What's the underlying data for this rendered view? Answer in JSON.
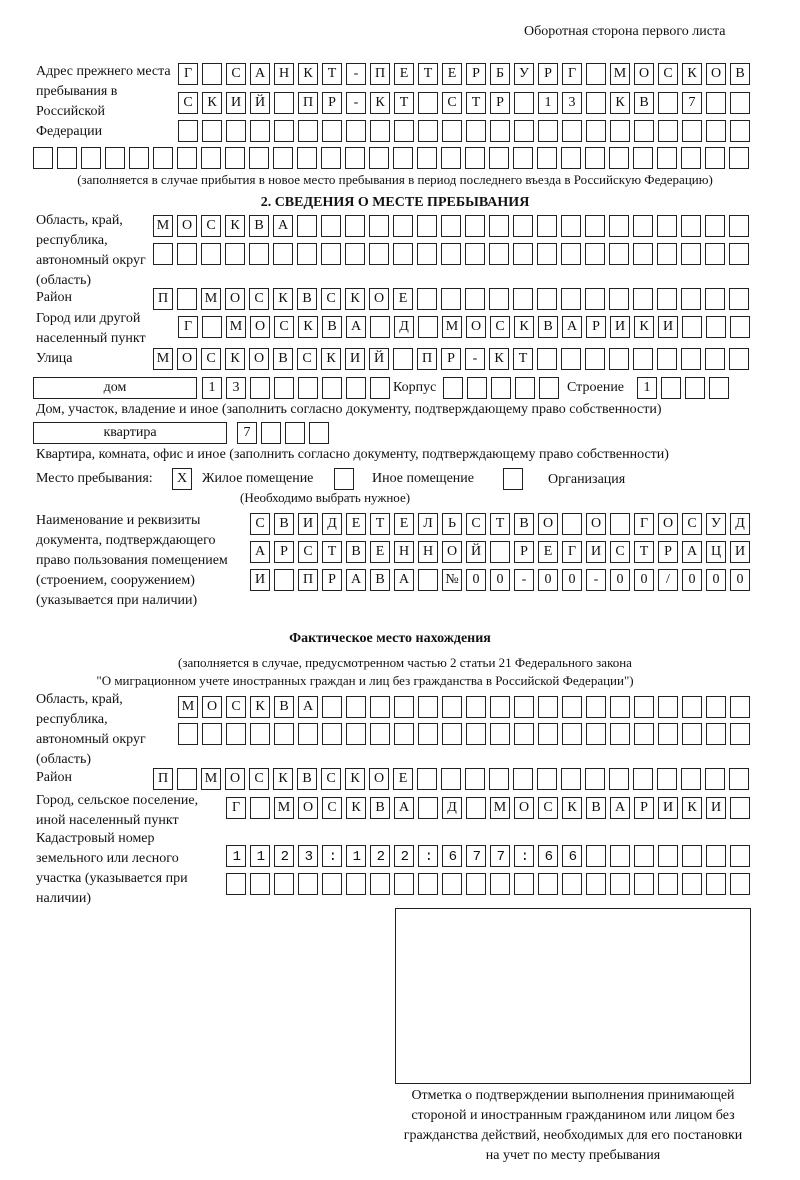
{
  "header": {
    "page_side": "Оборотная сторона первого листа"
  },
  "previous_address": {
    "label": "Адрес прежнего места пребывания в Российской Федерации",
    "rows": [
      "Г САНКТ-ПЕТЕРБУРГ МОСКОВ",
      "СКИЙ ПР-КТ СТР 13 КВ 7  ",
      "                        ",
      "                              "
    ],
    "note": "(заполняется в случае прибытия в новое место пребывания в период последнего въезда в Российскую Федерацию)"
  },
  "section2": {
    "title": "2. СВЕДЕНИЯ О МЕСТЕ ПРЕБЫВАНИЯ",
    "region": {
      "label": "Область, край, республика, автономный округ (область)",
      "rows": [
        "МОСКВА                   ",
        "                         "
      ]
    },
    "district": {
      "label": "Район",
      "rows": [
        "П МОСКВСКОЕ              "
      ]
    },
    "city": {
      "label": "Город или другой населенный пункт",
      "rows": [
        "Г МОСКВА Д МОСКВАРИКИ   "
      ]
    },
    "street": {
      "label": "Улица",
      "rows": [
        "МОСКОВСКИЙ ПР-КТ         "
      ]
    },
    "house": {
      "type_value": "дом",
      "number_cells": "13      ",
      "korpus_label": "Корпус",
      "korpus_cells": "     ",
      "building_label": "Строение",
      "building_cells": "1   ",
      "note": "Дом, участок, владение и иное (заполнить согласно документу, подтверждающему право собственности)"
    },
    "apartment": {
      "type_value": "квартира",
      "number_cells": "7   ",
      "note": "Квартира, комната, офис и иное (заполнить согласно документу, подтверждающему право собственности)"
    },
    "stay_place": {
      "label": "Место пребывания:",
      "options": [
        {
          "label": "Жилое помещение",
          "mark": "X",
          "checked": true
        },
        {
          "label": "Иное помещение",
          "mark": "",
          "checked": false
        },
        {
          "label": "Организация",
          "mark": "",
          "checked": false
        }
      ],
      "note": "(Необходимо выбрать нужное)"
    },
    "document": {
      "label": "Наименование и реквизиты документа, подтверждающего право пользования помещением (строением, сооружением) (указывается при наличии)",
      "rows": [
        "СВИДЕТЕЛЬСТВО О ГОСУД",
        "АРСТВЕННОЙ РЕГИСТРАЦИ",
        "И ПРАВА №00-00-00/000"
      ]
    }
  },
  "actual_location": {
    "title": "Фактическое место нахождения",
    "note_line1": "(заполняется в случае, предусмотренном частью 2 статьи 21 Федерального закона",
    "note_line2": "\"О миграционном учете иностранных граждан и лиц без гражданства в Российской Федерации\")",
    "region": {
      "label": "Область, край, республика, автономный округ (область)",
      "rows": [
        "МОСКВА                  ",
        "                        "
      ]
    },
    "district": {
      "label": "Район",
      "rows": [
        "П МОСКВСКОЕ              "
      ]
    },
    "settlement": {
      "label": "Город, сельское поселение, иной населенный пункт",
      "rows": [
        "Г МОСКВА Д МОСКВАРИКИ "
      ]
    },
    "cadastral": {
      "label": "Кадастровый номер земельного или лесного участка (указывается при наличии)",
      "rows": [
        "1123:122:677:66       ",
        "                      "
      ]
    }
  },
  "confirmation": {
    "caption": "Отметка о подтверждении выполнения принимающей стороной и иностранным гражданином или лицом без гражданства действий, необходимых для его постановки на учет по месту пребывания"
  }
}
